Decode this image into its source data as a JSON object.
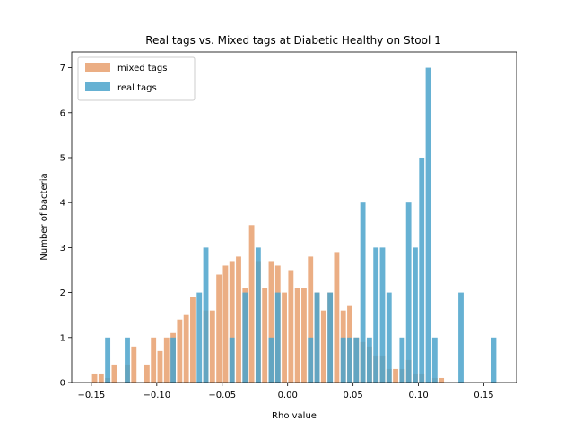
{
  "chart_data": {
    "type": "bar",
    "title": "Real tags vs. Mixed tags at Diabetic Healthy on Stool 1",
    "xlabel": "Rho value",
    "ylabel": "Number of bacteria",
    "xlim": [
      -0.165,
      0.175
    ],
    "ylim": [
      0,
      7.35
    ],
    "bar_width": 0.004,
    "x_ticks": [
      -0.15,
      -0.1,
      -0.05,
      0.0,
      0.05,
      0.1,
      0.15
    ],
    "x_tick_labels": [
      "−0.15",
      "−0.10",
      "−0.05",
      "0.00",
      "0.05",
      "0.10",
      "0.15"
    ],
    "y_ticks": [
      0,
      1,
      2,
      3,
      4,
      5,
      6,
      7
    ],
    "y_tick_labels": [
      "0",
      "1",
      "2",
      "3",
      "4",
      "5",
      "6",
      "7"
    ],
    "grid": false,
    "legend_position": "top-left",
    "series": [
      {
        "name": "mixed tags",
        "color": "#e8a06e",
        "opacity": 0.85,
        "points": [
          {
            "x": -0.1475,
            "y": 0.2
          },
          {
            "x": -0.1425,
            "y": 0.2
          },
          {
            "x": -0.1375,
            "y": 0.1
          },
          {
            "x": -0.1325,
            "y": 0.4
          },
          {
            "x": -0.1225,
            "y": 0.4
          },
          {
            "x": -0.1175,
            "y": 0.8
          },
          {
            "x": -0.1075,
            "y": 0.4
          },
          {
            "x": -0.1025,
            "y": 1.0
          },
          {
            "x": -0.0975,
            "y": 0.7
          },
          {
            "x": -0.0925,
            "y": 1.0
          },
          {
            "x": -0.0875,
            "y": 1.1
          },
          {
            "x": -0.0825,
            "y": 1.4
          },
          {
            "x": -0.0775,
            "y": 1.5
          },
          {
            "x": -0.0725,
            "y": 1.9
          },
          {
            "x": -0.0625,
            "y": 1.6
          },
          {
            "x": -0.0575,
            "y": 1.6
          },
          {
            "x": -0.0525,
            "y": 2.4
          },
          {
            "x": -0.0475,
            "y": 2.6
          },
          {
            "x": -0.0425,
            "y": 2.7
          },
          {
            "x": -0.0375,
            "y": 2.8
          },
          {
            "x": -0.0325,
            "y": 2.1
          },
          {
            "x": -0.0275,
            "y": 3.5
          },
          {
            "x": -0.0225,
            "y": 2.7
          },
          {
            "x": -0.0175,
            "y": 2.1
          },
          {
            "x": -0.0125,
            "y": 2.7
          },
          {
            "x": -0.0075,
            "y": 2.6
          },
          {
            "x": -0.0025,
            "y": 2.0
          },
          {
            "x": 0.0025,
            "y": 2.5
          },
          {
            "x": 0.0075,
            "y": 2.1
          },
          {
            "x": 0.0125,
            "y": 2.1
          },
          {
            "x": 0.0175,
            "y": 2.8
          },
          {
            "x": 0.0225,
            "y": 2.0
          },
          {
            "x": 0.0275,
            "y": 1.6
          },
          {
            "x": 0.0325,
            "y": 2.0
          },
          {
            "x": 0.0375,
            "y": 2.9
          },
          {
            "x": 0.0425,
            "y": 1.6
          },
          {
            "x": 0.0475,
            "y": 1.7
          },
          {
            "x": 0.0525,
            "y": 1.0
          },
          {
            "x": 0.0575,
            "y": 0.9
          },
          {
            "x": 0.0625,
            "y": 0.8
          },
          {
            "x": 0.0675,
            "y": 0.6
          },
          {
            "x": 0.0725,
            "y": 0.6
          },
          {
            "x": 0.0775,
            "y": 0.3
          },
          {
            "x": 0.0825,
            "y": 0.3
          },
          {
            "x": 0.0875,
            "y": 0.3
          },
          {
            "x": 0.0925,
            "y": 0.5
          },
          {
            "x": 0.0975,
            "y": 0.2
          },
          {
            "x": 0.1025,
            "y": 0.2
          },
          {
            "x": 0.1125,
            "y": 0.1
          },
          {
            "x": 0.1175,
            "y": 0.1
          }
        ]
      },
      {
        "name": "real tags",
        "color": "#4ba3cb",
        "opacity": 0.85,
        "points": [
          {
            "x": -0.1375,
            "y": 1.0
          },
          {
            "x": -0.1225,
            "y": 1.0
          },
          {
            "x": -0.0875,
            "y": 1.0
          },
          {
            "x": -0.0675,
            "y": 2.0
          },
          {
            "x": -0.0625,
            "y": 3.0
          },
          {
            "x": -0.0425,
            "y": 1.0
          },
          {
            "x": -0.0325,
            "y": 2.0
          },
          {
            "x": -0.0225,
            "y": 3.0
          },
          {
            "x": -0.0125,
            "y": 1.0
          },
          {
            "x": -0.0075,
            "y": 2.0
          },
          {
            "x": 0.0175,
            "y": 1.0
          },
          {
            "x": 0.0225,
            "y": 2.0
          },
          {
            "x": 0.0325,
            "y": 2.0
          },
          {
            "x": 0.0425,
            "y": 1.0
          },
          {
            "x": 0.0475,
            "y": 1.0
          },
          {
            "x": 0.0525,
            "y": 1.0
          },
          {
            "x": 0.0575,
            "y": 4.0
          },
          {
            "x": 0.0625,
            "y": 1.0
          },
          {
            "x": 0.0675,
            "y": 3.0
          },
          {
            "x": 0.0725,
            "y": 3.0
          },
          {
            "x": 0.0775,
            "y": 2.0
          },
          {
            "x": 0.0875,
            "y": 1.0
          },
          {
            "x": 0.0925,
            "y": 4.0
          },
          {
            "x": 0.0975,
            "y": 3.0
          },
          {
            "x": 0.1025,
            "y": 5.0
          },
          {
            "x": 0.1075,
            "y": 7.0
          },
          {
            "x": 0.1125,
            "y": 1.0
          },
          {
            "x": 0.1325,
            "y": 2.0
          },
          {
            "x": 0.1575,
            "y": 1.0
          }
        ]
      }
    ]
  }
}
